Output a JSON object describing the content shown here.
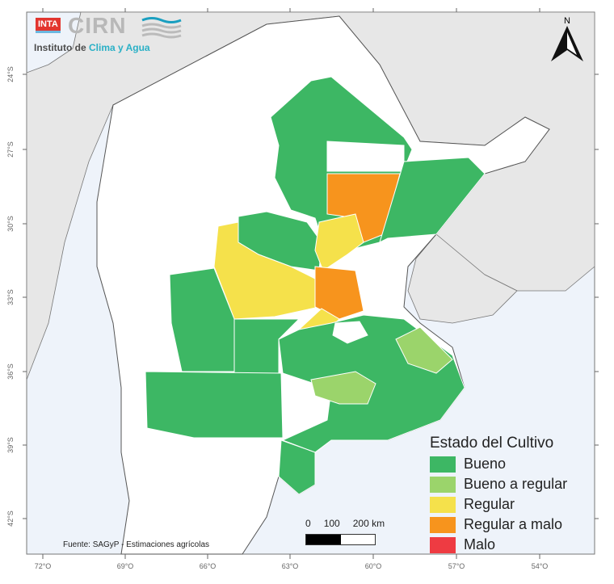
{
  "logo": {
    "inta": "INTA",
    "cirn": "CIRN",
    "subtitle_prefix": "Instituto de ",
    "subtitle_accent": "Clima y Agua"
  },
  "north_arrow": {
    "label": "N"
  },
  "lat_ticks": [
    "24°S",
    "27°S",
    "30°S",
    "33°S",
    "36°S",
    "39°S",
    "42°S"
  ],
  "lon_ticks": [
    "72°O",
    "69°O",
    "66°O",
    "63°O",
    "60°O",
    "57°O",
    "54°O"
  ],
  "legend": {
    "title": "Estado del Cultivo",
    "items": [
      {
        "label": "Bueno",
        "color": "#3db764"
      },
      {
        "label": "Bueno a regular",
        "color": "#9bd46b"
      },
      {
        "label": "Regular",
        "color": "#f5e14b"
      },
      {
        "label": "Regular a malo",
        "color": "#f7941d"
      },
      {
        "label": "Malo",
        "color": "#ee3b42"
      }
    ]
  },
  "scale_bar": {
    "labels": [
      "0",
      "100",
      "200 km"
    ]
  },
  "source": "Fuente: SAGyP - Estimaciones agrícolas"
}
